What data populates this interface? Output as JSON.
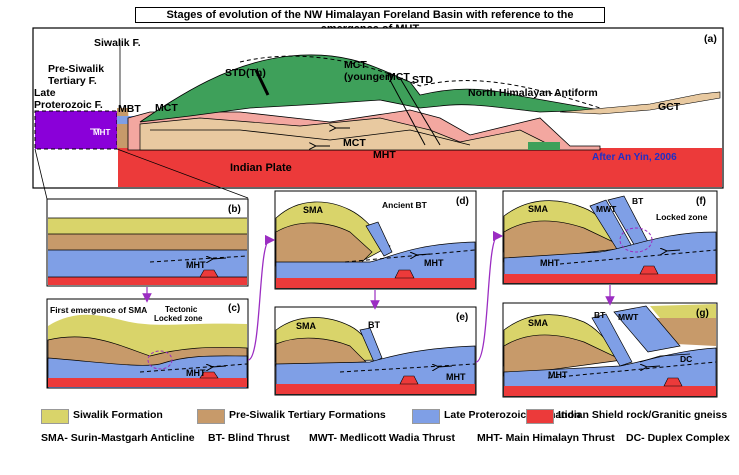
{
  "title": "Stages of evolution of the NW Himalayan Foreland Basin with reference to the emergence of MHT",
  "colors": {
    "siwalik": "#d9d46a",
    "pre_siwalik": "#c79a6a",
    "late_proterozoic": "#7f9fe6",
    "indian_shield": "#ec3a3a",
    "green": "#3ea05a",
    "pink": "#f3a7a0",
    "tan": "#e8c9a0",
    "purple": "#8a00d9",
    "connector": "#9b2dc2",
    "credit": "#1c2fc8"
  },
  "panel_a": {
    "letter": "(a)",
    "labels": {
      "siwalik_f": "Siwalik F.",
      "pre_siwalik_1": "Pre-Siwalik",
      "pre_siwalik_2": "Tertiary F.",
      "late_prot_1": "Late",
      "late_prot_2": "Proterozoic F.",
      "mbt": "MBT",
      "mct": "MCT",
      "std_th": "STD(Th)",
      "mct_younger_1": "MCT",
      "mct_younger_2": "(younger)",
      "mct_2": "MCT",
      "std": "STD",
      "north_himalayan_antiform": "North Himalayan Antiform",
      "gct": "GCT",
      "mht_inset": "MHT",
      "mct_lower": "MCT",
      "mht": "MHT",
      "indian_plate": "Indian Plate",
      "credit": "After An Yin, 2006"
    }
  },
  "panels": {
    "b": {
      "letter": "(b)",
      "mht": "MHT"
    },
    "c": {
      "letter": "(c)",
      "first_emergence": "First emergence of SMA",
      "tectonic_1": "Tectonic",
      "tectonic_2": "Locked zone",
      "mht": "MHT"
    },
    "d": {
      "letter": "(d)",
      "sma": "SMA",
      "ancient_bt": "Ancient BT",
      "mht": "MHT"
    },
    "e": {
      "letter": "(e)",
      "sma": "SMA",
      "bt": "BT",
      "mht": "MHT"
    },
    "f": {
      "letter": "(f)",
      "sma": "SMA",
      "mwt": "MWT",
      "bt": "BT",
      "locked_zone": "Locked zone",
      "mht": "MHT"
    },
    "g": {
      "letter": "(g)",
      "sma": "SMA",
      "bt": "BT",
      "mwt": "MWT",
      "dc": "DC",
      "mht": "MHT"
    }
  },
  "legend": [
    {
      "label": "Siwalik Formation",
      "color_key": "siwalik"
    },
    {
      "label": "Pre-Siwalik Tertiary Formations",
      "color_key": "pre_siwalik"
    },
    {
      "label": "Late Proterozoic Formation",
      "color_key": "late_proterozoic"
    },
    {
      "label": "Indian Shield rock/Granitic gneiss",
      "color_key": "indian_shield"
    }
  ],
  "abbreviations": [
    "SMA- Surin-Mastgarh Anticline",
    "BT- Blind Thrust",
    "MWT- Medlicott Wadia Thrust",
    "MHT- Main Himalayn Thrust",
    "DC- Duplex Complex"
  ]
}
